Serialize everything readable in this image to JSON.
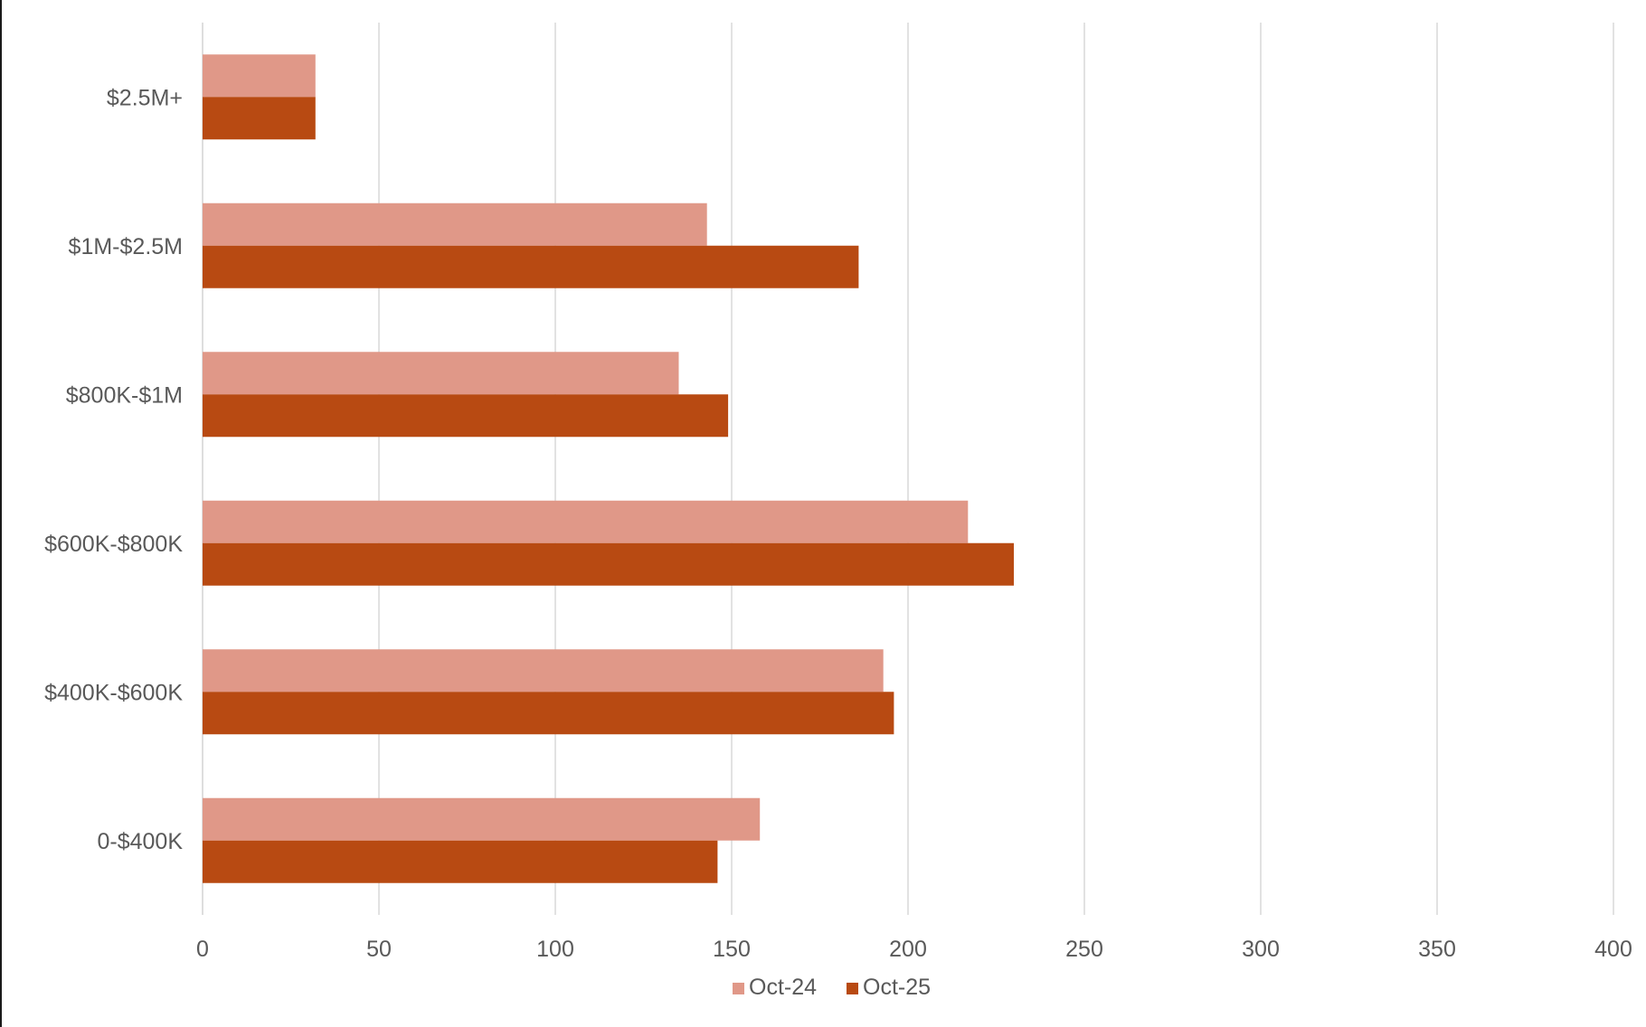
{
  "chart_data": {
    "type": "bar",
    "orientation": "horizontal",
    "categories": [
      "0-$400K",
      "$400K-$600K",
      "$600K-$800K",
      "$800K-$1M",
      "$1M-$2.5M",
      "$2.5M+"
    ],
    "series": [
      {
        "name": "Oct-24",
        "color": "#e09888",
        "values": [
          158,
          193,
          217,
          135,
          143,
          32
        ]
      },
      {
        "name": "Oct-25",
        "color": "#b84a12",
        "values": [
          146,
          196,
          230,
          149,
          186,
          32
        ]
      }
    ],
    "xlim": [
      0,
      400
    ],
    "xticks": [
      "0",
      "50",
      "100",
      "150",
      "200",
      "250",
      "300",
      "350",
      "400"
    ],
    "grid": "vertical",
    "legend_position": "bottom",
    "title": "",
    "xlabel": "",
    "ylabel": ""
  }
}
